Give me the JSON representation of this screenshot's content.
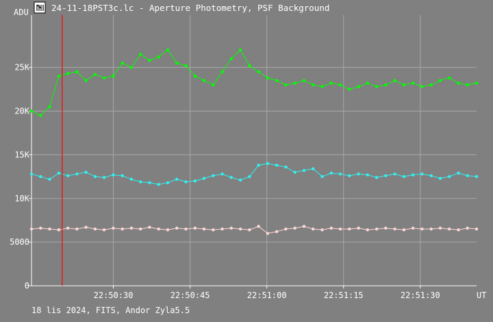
{
  "window": {
    "title": "24-11-18PST3c.lc - Aperture Photometry, PSF Background",
    "icon": "light-curve-app-icon"
  },
  "footer": {
    "caption": "18 lis 2024, FITS, Andor Zyla5.5"
  },
  "colors": {
    "background": "#808080",
    "grid": "#a8a8a8",
    "axis": "#ffffff",
    "cursor": "#ff0000",
    "series_top": "#00ff00",
    "series_mid": "#33f0f0",
    "series_low": "#ffd8d8"
  },
  "chart_data": {
    "type": "scatter",
    "title": "24-11-18PST3c.lc - Aperture Photometry, PSF Background",
    "ylabel": "ADU",
    "xlabel": "UT",
    "ylim": [
      0,
      31000
    ],
    "xlim": [
      "22:50:14",
      "22:51:41"
    ],
    "x_ticks": [
      "22:50:30",
      "22:50:45",
      "22:51:00",
      "22:51:15",
      "22:51:30"
    ],
    "y_ticks": [
      {
        "value": 0,
        "label": "0"
      },
      {
        "value": 5000,
        "label": "5000"
      },
      {
        "value": 10000,
        "label": "10K"
      },
      {
        "value": 15000,
        "label": "15K"
      },
      {
        "value": 20000,
        "label": "20K"
      },
      {
        "value": 25000,
        "label": "25K"
      }
    ],
    "grid": true,
    "markers": "connected-dots",
    "cursor_time": "22:50:20",
    "series": [
      {
        "color": "#00ff00",
        "x_start": "22:50:14",
        "x_end": "22:51:41",
        "values_sampled": [
          20000,
          19500,
          20500,
          24000,
          24300,
          24500,
          23500,
          24200,
          23800,
          24000,
          25500,
          25000,
          26500,
          25800,
          26200,
          27000,
          25500,
          25200,
          24000,
          23500,
          23000,
          24500,
          26000,
          27000,
          25200,
          24500,
          23800,
          23500,
          23000,
          23200,
          23500,
          23000,
          22800,
          23200,
          23000,
          22500,
          22800,
          23200,
          22800,
          23000,
          23500,
          23000,
          23200,
          22800,
          23000,
          23500,
          23800,
          23200,
          23000,
          23200
        ]
      },
      {
        "color": "#33f0f0",
        "x_start": "22:50:14",
        "x_end": "22:51:41",
        "values_sampled": [
          12800,
          12500,
          12200,
          12900,
          12600,
          12800,
          13000,
          12500,
          12400,
          12700,
          12600,
          12200,
          11900,
          11800,
          11600,
          11800,
          12200,
          11900,
          12000,
          12300,
          12600,
          12800,
          12400,
          12100,
          12500,
          13800,
          14000,
          13800,
          13600,
          13000,
          13200,
          13400,
          12500,
          12900,
          12800,
          12600,
          12800,
          12700,
          12400,
          12600,
          12800,
          12500,
          12700,
          12800,
          12600,
          12300,
          12500,
          12900,
          12600,
          12500
        ]
      },
      {
        "color": "#ffd8d8",
        "x_start": "22:50:14",
        "x_end": "22:51:41",
        "values_sampled": [
          6500,
          6600,
          6500,
          6400,
          6600,
          6500,
          6700,
          6500,
          6400,
          6600,
          6500,
          6600,
          6500,
          6700,
          6500,
          6400,
          6600,
          6500,
          6600,
          6500,
          6400,
          6500,
          6600,
          6500,
          6400,
          6800,
          6000,
          6200,
          6500,
          6600,
          6800,
          6500,
          6400,
          6600,
          6500,
          6500,
          6600,
          6400,
          6500,
          6600,
          6500,
          6400,
          6600,
          6500,
          6500,
          6600,
          6500,
          6400,
          6600,
          6500
        ]
      }
    ]
  }
}
